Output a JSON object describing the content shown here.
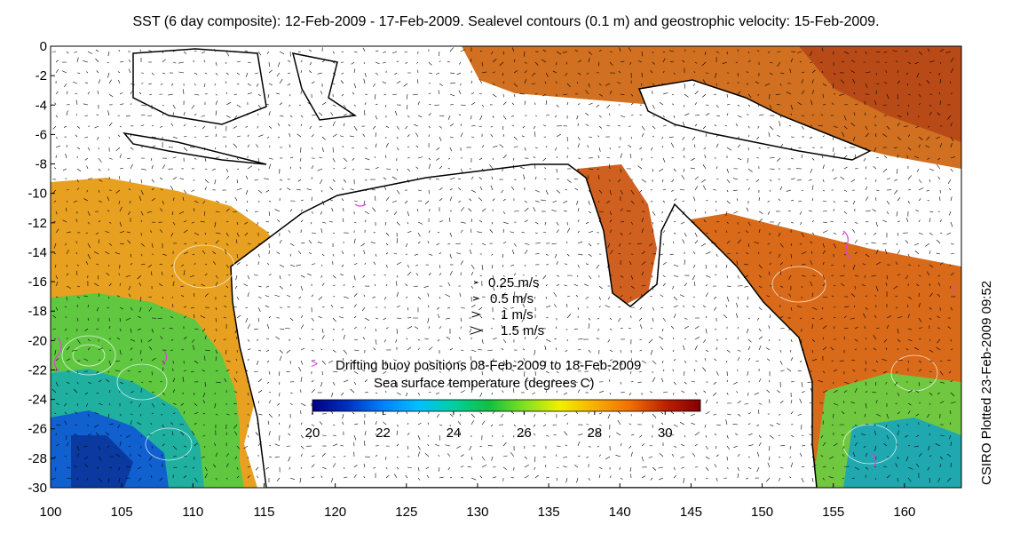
{
  "title": "SST (6 day composite): 12-Feb-2009 - 17-Feb-2009. Sealevel contours (0.1 m) and geostrophic velocity: 15-Feb-2009.",
  "side_note": "CSIRO Plotted 23-Feb-2009 09:52",
  "axes": {
    "lon_ticks": [
      "100",
      "105",
      "110",
      "115",
      "120",
      "125",
      "130",
      "135",
      "140",
      "145",
      "150",
      "155",
      "160"
    ],
    "lat_ticks": [
      "0",
      "-2",
      "-4",
      "-6",
      "-8",
      "-10",
      "-12",
      "-14",
      "-16",
      "-18",
      "-20",
      "-22",
      "-24",
      "-26",
      "-28",
      "-30"
    ],
    "lon_range": [
      100,
      164
    ],
    "lat_range": [
      -30,
      0
    ]
  },
  "velocity_legend": {
    "items": [
      {
        "label": "0.25 m/s"
      },
      {
        "label": "0.5 m/s"
      },
      {
        "label": "1 m/s"
      },
      {
        "label": "1.5 m/s"
      }
    ]
  },
  "buoy_legend": {
    "symbol": ">",
    "label": "Drifting buoy positions 08-Feb-2009 to 18-Feb-2009",
    "color": "#e040e0"
  },
  "colorbar": {
    "title": "Sea surface temperature (degrees C)",
    "range": [
      20,
      31
    ],
    "tick_labels": [
      "20",
      "22",
      "24",
      "26",
      "28",
      "30"
    ],
    "colors": [
      "#000080",
      "#0030c0",
      "#0080ff",
      "#00c0ff",
      "#00d0a0",
      "#10c040",
      "#80e020",
      "#f0f000",
      "#f8b000",
      "#f07000",
      "#c02000",
      "#800000"
    ]
  }
}
